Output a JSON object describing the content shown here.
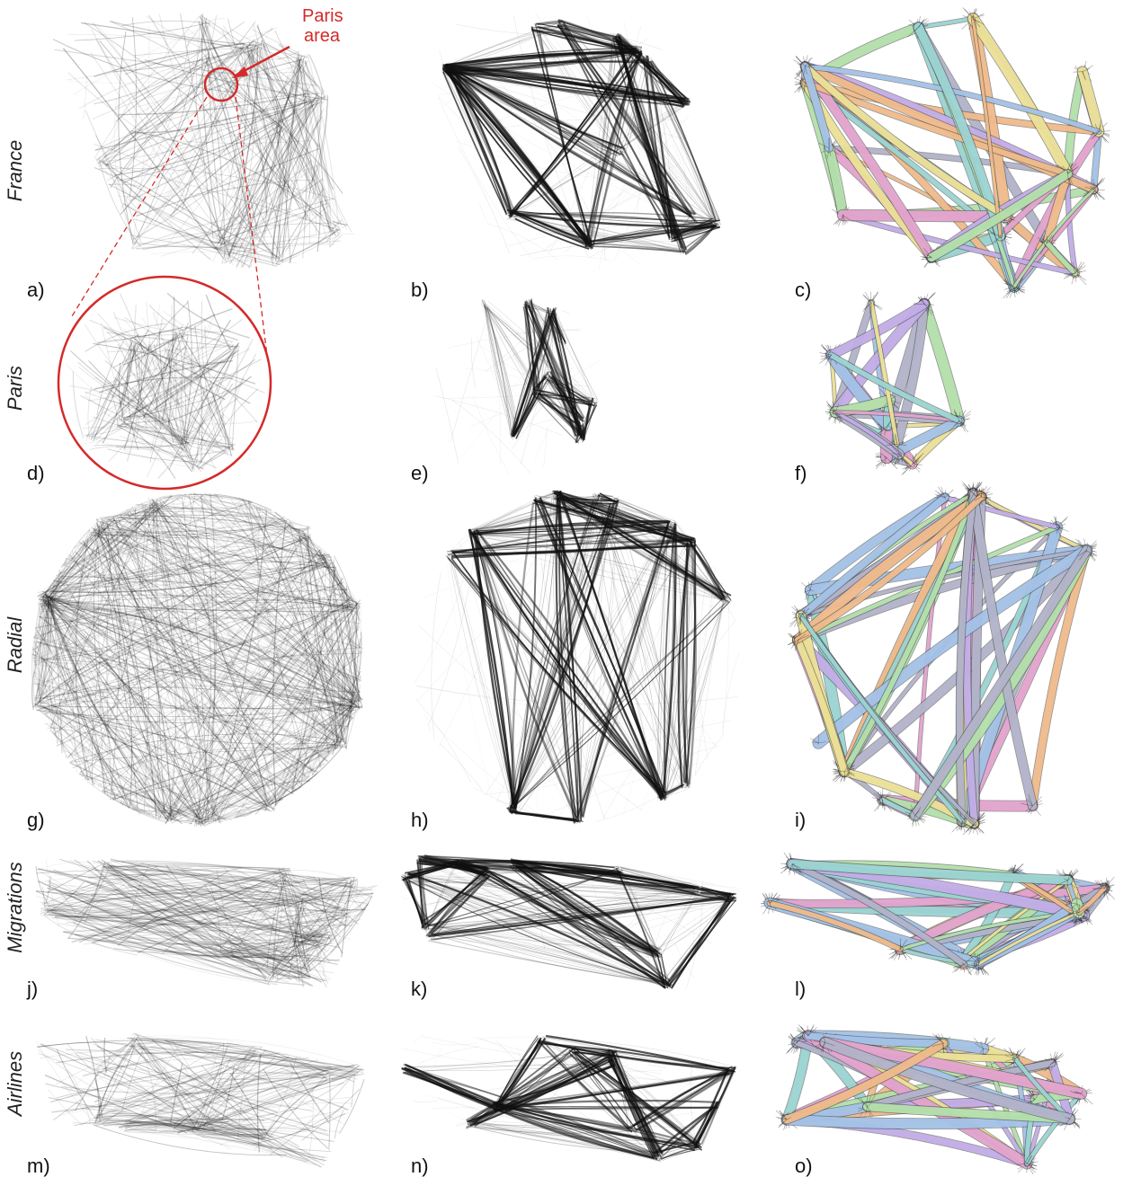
{
  "row_labels": [
    "France",
    "Paris",
    "Radial",
    "Migrations",
    "Airlines"
  ],
  "panel_labels": [
    "a)",
    "b)",
    "c)",
    "d)",
    "e)",
    "f)",
    "g)",
    "h)",
    "i)",
    "j)",
    "k)",
    "l)",
    "m)",
    "n)",
    "o)"
  ],
  "annotation": {
    "line1": "Paris",
    "line2": "area"
  },
  "colors": {
    "ink": "#111111",
    "highlight": "#d42a2a",
    "bundles": [
      "#b9e6b0",
      "#e9a8d4",
      "#a8c8ee",
      "#f3e79b",
      "#c8b2ee",
      "#f6c08e",
      "#9fdad8",
      "#b7b9cf"
    ]
  }
}
